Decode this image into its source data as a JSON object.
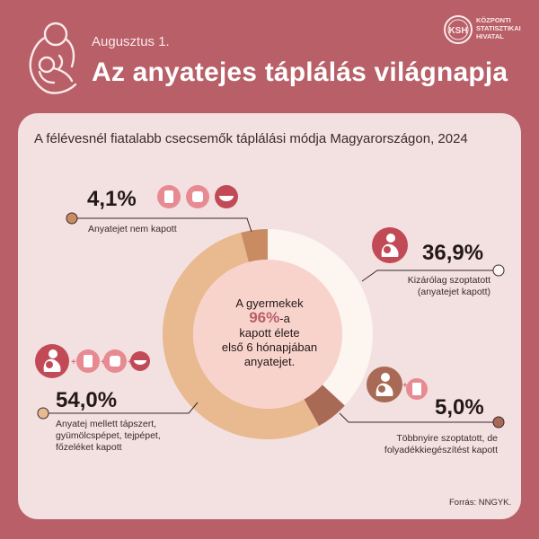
{
  "header": {
    "date": "Augusztus 1.",
    "title": "Az anyatejes táplálás világnapja",
    "logo_icon": "mother-breastfeeding-icon"
  },
  "org": {
    "abbr": "KSH",
    "line1": "KÖZPONTI",
    "line2": "STATISZTIKAI",
    "line3": "HIVATAL"
  },
  "colors": {
    "background": "#b85f68",
    "card": "#f3e0e0",
    "exclusive": "#fdf5ef",
    "mostly": "#a86a55",
    "mixed": "#e9b98f",
    "none": "#c98b62",
    "accent": "#c24a57"
  },
  "chart_data": {
    "type": "pie",
    "title": "A félévesnél fiatalabb csecsemők táplálási módja Magyarországon, 2024",
    "slices": [
      {
        "label": "Kizárólag szoptatott (anyatejet kapott)",
        "value": 36.9,
        "display": "36,9%"
      },
      {
        "label": "Többnyire szoptatott, de folyadékkiegészítést kapott",
        "value": 5.0,
        "display": "5,0%"
      },
      {
        "label": "Anyatej mellett tápszert, gyümölcspépet, tejpépet, főzeléket kapott",
        "value": 54.0,
        "display": "54,0%"
      },
      {
        "label": "Anyatejet nem kapott",
        "value": 4.1,
        "display": "4,1%"
      }
    ]
  },
  "labels": {
    "exclusive_line1": "Kizárólag szoptatott",
    "exclusive_line2": "(anyatejet kapott)",
    "mostly_line1": "Többnyire szoptatott, de",
    "mostly_line2": "folyadékkiegészítést kapott",
    "mixed_line1": "Anyatej mellett tápszert,",
    "mixed_line2": "gyümölcspépet, tejpépet,",
    "mixed_line3": "főzeléket kapott",
    "none_line1": "Anyatejet nem kapott"
  },
  "center": {
    "line1": "A gyermekek",
    "highlight": "96%",
    "suffix": "-a",
    "line3": "kapott élete",
    "line4": "első 6 hónapjában",
    "line5": "anyatejet."
  },
  "source": "Forrás: NNGYK."
}
